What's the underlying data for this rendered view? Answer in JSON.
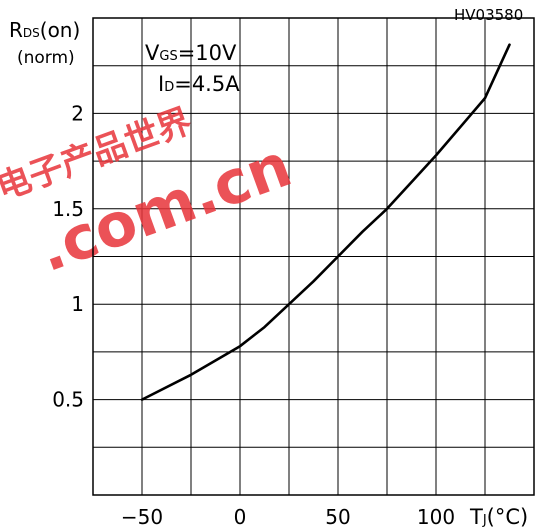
{
  "chart_data": {
    "type": "line",
    "code": "HV03580",
    "ylabel_main": "R",
    "ylabel_sub": "DS",
    "ylabel_tail": "(on)",
    "ylabel_unit": "(norm)",
    "xlabel_main": "T",
    "xlabel_sub": "J",
    "xlabel_tail": "(°C)",
    "cond1_main": "V",
    "cond1_sub": "GS",
    "cond1_tail": "=10V",
    "cond2_main": "I",
    "cond2_sub": "D",
    "cond2_tail": "=4.5A",
    "xlim": [
      -75,
      150
    ],
    "ylim": [
      0.0,
      2.5
    ],
    "grid": true,
    "x_grid_step": 25,
    "y_grid_step": 0.25,
    "xticks": [
      "−50",
      "0",
      "50",
      "100"
    ],
    "xtick_values": [
      -50,
      0,
      50,
      100
    ],
    "yticks": [
      "0.5",
      "1",
      "1.5",
      "2"
    ],
    "ytick_values": [
      0.5,
      1.0,
      1.5,
      2.0
    ],
    "series": [
      {
        "x": [
          -50,
          -25,
          0,
          12.5,
          25,
          37.5,
          50,
          62.5,
          75,
          87.5,
          100,
          112.5,
          125,
          137.5
        ],
        "y": [
          0.5,
          0.63,
          0.78,
          0.88,
          1.0,
          1.12,
          1.25,
          1.38,
          1.5,
          1.64,
          1.78,
          1.93,
          2.08,
          2.36
        ]
      }
    ]
  },
  "watermark": {
    "main": ".com.cn",
    "chinese": "电子产品世界"
  }
}
